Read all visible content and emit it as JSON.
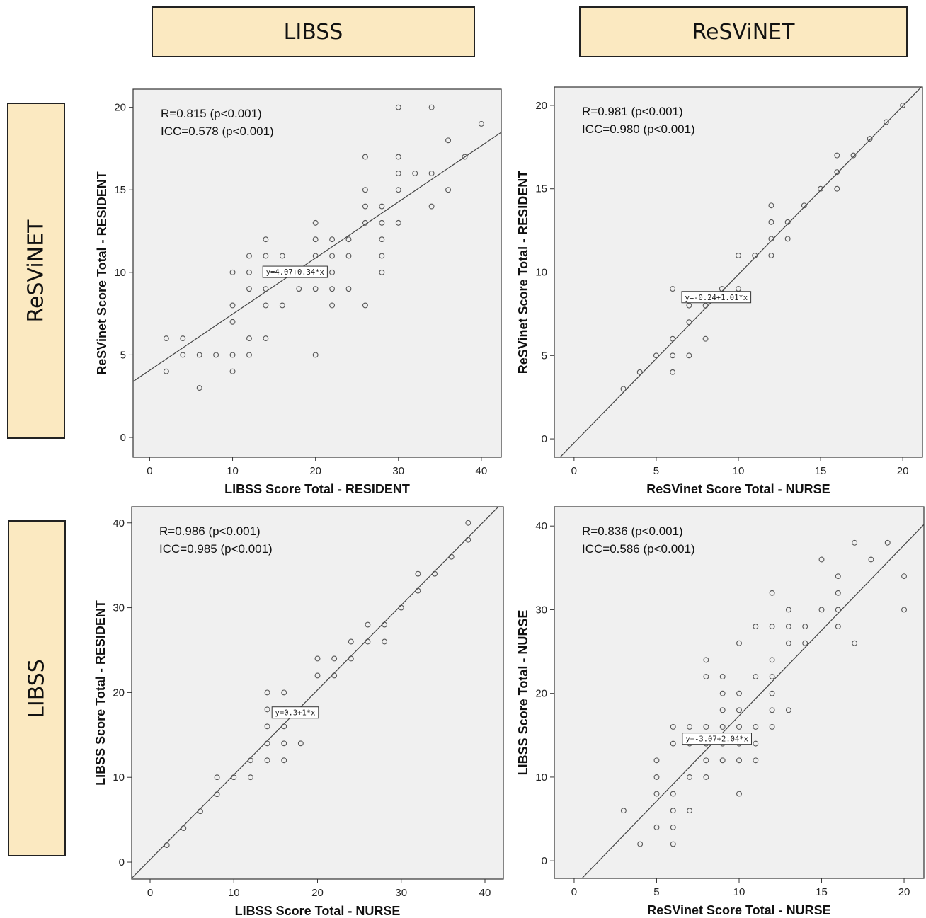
{
  "headers": {
    "columns": [
      "LIBSS",
      "ReSViNET"
    ],
    "rows": [
      "ReSViNET",
      "LIBSS"
    ]
  },
  "colors": {
    "header_fill": "#fbe9c1",
    "panel_bg": "#f0f0f0",
    "mark": "#555555",
    "fit_line": "#444444"
  },
  "chart_data": [
    {
      "type": "scatter",
      "xlabel": "LIBSS Score Total - RESIDENT",
      "ylabel": "ReSVinet Score Total - RESIDENT",
      "xlim": [
        -2,
        42.4
      ],
      "ylim": [
        -1.2,
        21.1
      ],
      "xticks": [
        0,
        10,
        20,
        30,
        40
      ],
      "yticks": [
        0,
        5,
        10,
        15,
        20
      ],
      "annotations": [
        "R=0.815 (p<0.001)",
        "ICC=0.578 (p<0.001)"
      ],
      "fit": {
        "intercept": 4.07,
        "slope": 0.34,
        "label": "y=4.07+0.34*x"
      },
      "points": [
        [
          2,
          6
        ],
        [
          2,
          4
        ],
        [
          4,
          6
        ],
        [
          4,
          5
        ],
        [
          6,
          5
        ],
        [
          6,
          3
        ],
        [
          8,
          5
        ],
        [
          10,
          10
        ],
        [
          10,
          8
        ],
        [
          10,
          7
        ],
        [
          10,
          5
        ],
        [
          10,
          4
        ],
        [
          12,
          11
        ],
        [
          12,
          10
        ],
        [
          12,
          9
        ],
        [
          12,
          6
        ],
        [
          12,
          5
        ],
        [
          14,
          12
        ],
        [
          14,
          11
        ],
        [
          14,
          10
        ],
        [
          14,
          9
        ],
        [
          14,
          8
        ],
        [
          14,
          6
        ],
        [
          16,
          11
        ],
        [
          16,
          10
        ],
        [
          16,
          8
        ],
        [
          18,
          10
        ],
        [
          18,
          9
        ],
        [
          20,
          13
        ],
        [
          20,
          12
        ],
        [
          20,
          11
        ],
        [
          20,
          10
        ],
        [
          20,
          9
        ],
        [
          20,
          5
        ],
        [
          22,
          12
        ],
        [
          22,
          11
        ],
        [
          22,
          10
        ],
        [
          22,
          9
        ],
        [
          22,
          8
        ],
        [
          24,
          12
        ],
        [
          24,
          11
        ],
        [
          24,
          9
        ],
        [
          26,
          17
        ],
        [
          26,
          15
        ],
        [
          26,
          14
        ],
        [
          26,
          13
        ],
        [
          26,
          8
        ],
        [
          28,
          14
        ],
        [
          28,
          13
        ],
        [
          28,
          12
        ],
        [
          28,
          11
        ],
        [
          28,
          10
        ],
        [
          30,
          20
        ],
        [
          30,
          17
        ],
        [
          30,
          16
        ],
        [
          30,
          15
        ],
        [
          30,
          13
        ],
        [
          32,
          16
        ],
        [
          34,
          20
        ],
        [
          34,
          16
        ],
        [
          34,
          14
        ],
        [
          36,
          18
        ],
        [
          36,
          15
        ],
        [
          38,
          17
        ],
        [
          40,
          19
        ]
      ]
    },
    {
      "type": "scatter",
      "xlabel": "ReSVinet Score Total - NURSE",
      "ylabel": "ReSVinet Score Total - RESIDENT",
      "xlim": [
        -1.2,
        21.2
      ],
      "ylim": [
        -1.1,
        21.1
      ],
      "xticks": [
        0,
        5,
        10,
        15,
        20
      ],
      "yticks": [
        0,
        5,
        10,
        15,
        20
      ],
      "annotations": [
        "R=0.981 (p<0.001)",
        "ICC=0.980 (p<0.001)"
      ],
      "fit": {
        "intercept": -0.24,
        "slope": 1.01,
        "label": "y=-0.24+1.01*x"
      },
      "points": [
        [
          3,
          3
        ],
        [
          4,
          4
        ],
        [
          5,
          5
        ],
        [
          6,
          9
        ],
        [
          6,
          6
        ],
        [
          6,
          5
        ],
        [
          6,
          4
        ],
        [
          7,
          8
        ],
        [
          7,
          7
        ],
        [
          7,
          5
        ],
        [
          8,
          8
        ],
        [
          8,
          6
        ],
        [
          9,
          9
        ],
        [
          10,
          11
        ],
        [
          10,
          9
        ],
        [
          11,
          11
        ],
        [
          12,
          14
        ],
        [
          12,
          13
        ],
        [
          12,
          12
        ],
        [
          12,
          11
        ],
        [
          13,
          13
        ],
        [
          13,
          12
        ],
        [
          14,
          14
        ],
        [
          15,
          15
        ],
        [
          16,
          17
        ],
        [
          16,
          16
        ],
        [
          16,
          15
        ],
        [
          17,
          17
        ],
        [
          18,
          18
        ],
        [
          19,
          19
        ],
        [
          20,
          20
        ]
      ]
    },
    {
      "type": "scatter",
      "xlabel": "LIBSS Score Total - NURSE",
      "ylabel": "LIBSS Score Total - RESIDENT",
      "xlim": [
        -2.2,
        42.2
      ],
      "ylim": [
        -2,
        41.9
      ],
      "xticks": [
        0,
        10,
        20,
        30,
        40
      ],
      "yticks": [
        0,
        10,
        20,
        30,
        40
      ],
      "annotations": [
        "R=0.986 (p<0.001)",
        "ICC=0.985 (p<0.001)"
      ],
      "fit": {
        "intercept": 0.3,
        "slope": 1,
        "label": "y=0.3+1*x"
      },
      "points": [
        [
          2,
          2
        ],
        [
          4,
          4
        ],
        [
          6,
          6
        ],
        [
          8,
          10
        ],
        [
          8,
          8
        ],
        [
          10,
          10
        ],
        [
          12,
          12
        ],
        [
          12,
          10
        ],
        [
          14,
          20
        ],
        [
          14,
          18
        ],
        [
          14,
          16
        ],
        [
          14,
          14
        ],
        [
          14,
          12
        ],
        [
          16,
          20
        ],
        [
          16,
          18
        ],
        [
          16,
          16
        ],
        [
          16,
          14
        ],
        [
          16,
          12
        ],
        [
          18,
          18
        ],
        [
          18,
          14
        ],
        [
          20,
          24
        ],
        [
          20,
          22
        ],
        [
          22,
          24
        ],
        [
          22,
          22
        ],
        [
          24,
          26
        ],
        [
          24,
          24
        ],
        [
          26,
          28
        ],
        [
          26,
          26
        ],
        [
          28,
          28
        ],
        [
          28,
          26
        ],
        [
          30,
          30
        ],
        [
          32,
          34
        ],
        [
          32,
          32
        ],
        [
          34,
          34
        ],
        [
          36,
          36
        ],
        [
          38,
          40
        ],
        [
          38,
          38
        ]
      ]
    },
    {
      "type": "scatter",
      "xlabel": "ReSVinet Score Total - NURSE",
      "ylabel": "LIBSS Score Total - NURSE",
      "xlim": [
        -1.2,
        21.2
      ],
      "ylim": [
        -2.1,
        42.3
      ],
      "xticks": [
        0,
        5,
        10,
        15,
        20
      ],
      "yticks": [
        0,
        10,
        20,
        30,
        40
      ],
      "annotations": [
        "R=0.836 (p<0.001)",
        "ICC=0.586 (p<0.001)"
      ],
      "fit": {
        "intercept": -3.07,
        "slope": 2.04,
        "label": "y=-3.07+2.04*x"
      },
      "points": [
        [
          3,
          6
        ],
        [
          4,
          2
        ],
        [
          5,
          12
        ],
        [
          5,
          10
        ],
        [
          5,
          8
        ],
        [
          5,
          4
        ],
        [
          6,
          16
        ],
        [
          6,
          14
        ],
        [
          6,
          8
        ],
        [
          6,
          6
        ],
        [
          6,
          4
        ],
        [
          6,
          2
        ],
        [
          7,
          16
        ],
        [
          7,
          14
        ],
        [
          7,
          10
        ],
        [
          7,
          6
        ],
        [
          8,
          24
        ],
        [
          8,
          22
        ],
        [
          8,
          16
        ],
        [
          8,
          14
        ],
        [
          8,
          12
        ],
        [
          8,
          10
        ],
        [
          9,
          22
        ],
        [
          9,
          20
        ],
        [
          9,
          18
        ],
        [
          9,
          16
        ],
        [
          9,
          14
        ],
        [
          9,
          12
        ],
        [
          10,
          26
        ],
        [
          10,
          20
        ],
        [
          10,
          18
        ],
        [
          10,
          16
        ],
        [
          10,
          14
        ],
        [
          10,
          12
        ],
        [
          10,
          8
        ],
        [
          11,
          28
        ],
        [
          11,
          22
        ],
        [
          11,
          16
        ],
        [
          11,
          14
        ],
        [
          11,
          12
        ],
        [
          12,
          32
        ],
        [
          12,
          28
        ],
        [
          12,
          24
        ],
        [
          12,
          22
        ],
        [
          12,
          20
        ],
        [
          12,
          18
        ],
        [
          12,
          16
        ],
        [
          13,
          30
        ],
        [
          13,
          28
        ],
        [
          13,
          26
        ],
        [
          13,
          18
        ],
        [
          14,
          28
        ],
        [
          14,
          26
        ],
        [
          15,
          36
        ],
        [
          15,
          30
        ],
        [
          16,
          34
        ],
        [
          16,
          32
        ],
        [
          16,
          30
        ],
        [
          16,
          28
        ],
        [
          17,
          38
        ],
        [
          17,
          26
        ],
        [
          18,
          36
        ],
        [
          19,
          38
        ],
        [
          20,
          34
        ],
        [
          20,
          30
        ]
      ]
    }
  ]
}
